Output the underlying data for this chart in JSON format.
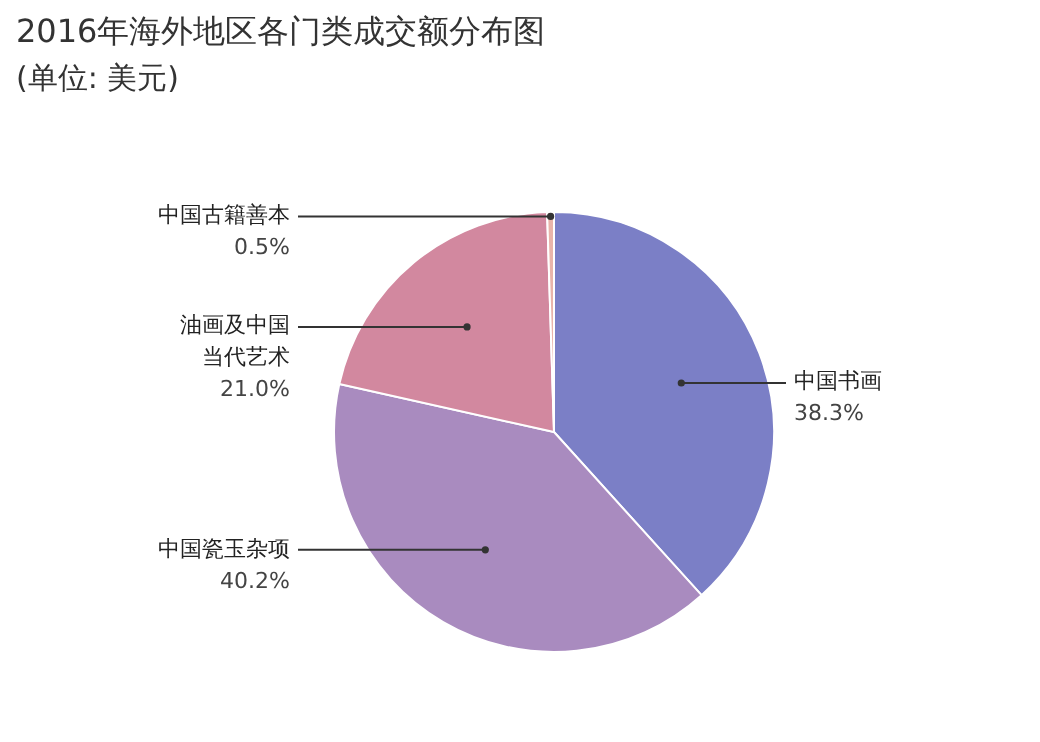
{
  "chart_data": {
    "type": "pie",
    "title": "2016年海外地区各门类成交额分布图",
    "subtitle": "(单位: 美元)",
    "categories": [
      "中国书画",
      "中国瓷玉杂项",
      "油画及中国当代艺术",
      "中国古籍善本"
    ],
    "values": [
      38.3,
      40.2,
      21.0,
      0.5
    ],
    "colors": [
      "#7b7fc6",
      "#a98bbf",
      "#d2889f",
      "#e9b4aa"
    ],
    "value_labels": [
      "38.3%",
      "40.2%",
      "21.0%",
      "0.5%"
    ]
  }
}
